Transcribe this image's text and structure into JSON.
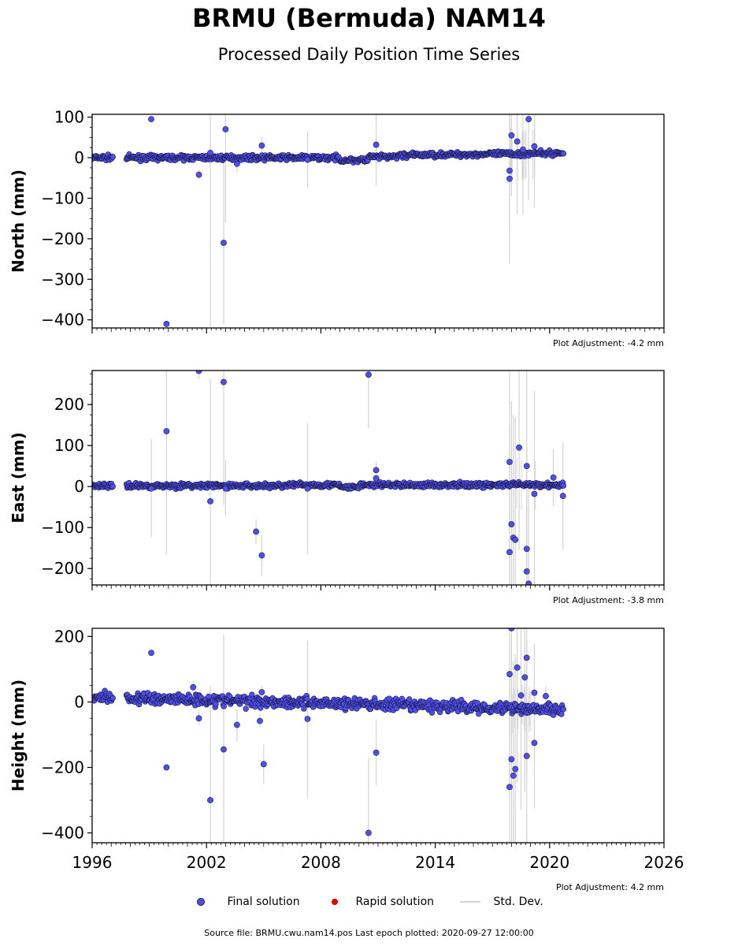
{
  "title": "BRMU (Bermuda) NAM14",
  "subtitle": "Processed Daily Position Time Series",
  "footer": "Source file: BRMU.cwu.nam14.pos  Last epoch plotted: 2020-09-27 12:00:00",
  "legend": [
    {
      "label": "Final solution",
      "color": "#4f4ff0"
    },
    {
      "label": "Rapid solution",
      "color": "#ff0000"
    },
    {
      "label": "Std. Dev.",
      "color": "#d3d3d3"
    }
  ],
  "chart_data": [
    {
      "type": "scatter",
      "ylabel": "North (mm)",
      "xlim": [
        1996,
        2026
      ],
      "ylim": [
        -420,
        107
      ],
      "yticks": [
        100,
        0,
        -100,
        -200,
        -300,
        -400
      ],
      "xticks": [
        1996,
        2002,
        2008,
        2014,
        2020,
        2026
      ],
      "xtick_labels_shown": false,
      "adjustment": "Plot Adjustment: -4.2 mm",
      "outliers": [
        {
          "x": 1999.1,
          "y": 95,
          "err": 0
        },
        {
          "x": 1999.9,
          "y": -410,
          "err": 0
        },
        {
          "x": 2001.6,
          "y": -42,
          "err": 12
        },
        {
          "x": 2002.2,
          "y": 12,
          "err": 430
        },
        {
          "x": 2002.9,
          "y": -210,
          "err": 200
        },
        {
          "x": 2003.0,
          "y": 70,
          "err": 230
        },
        {
          "x": 2003.6,
          "y": -15,
          "err": 20
        },
        {
          "x": 2004.9,
          "y": 30,
          "err": 20
        },
        {
          "x": 2007.3,
          "y": -5,
          "err": 70
        },
        {
          "x": 2010.9,
          "y": 32,
          "err": 100
        },
        {
          "x": 2017.9,
          "y": -52,
          "err": 210
        },
        {
          "x": 2017.9,
          "y": -32,
          "err": 150
        },
        {
          "x": 2018.0,
          "y": 55,
          "err": 150
        },
        {
          "x": 2018.3,
          "y": 40,
          "err": 180
        },
        {
          "x": 2018.6,
          "y": 20,
          "err": 160
        },
        {
          "x": 2018.9,
          "y": 95,
          "err": 200
        },
        {
          "x": 2019.2,
          "y": 28,
          "err": 150
        }
      ]
    },
    {
      "type": "scatter",
      "ylabel": "East (mm)",
      "xlim": [
        1996,
        2026
      ],
      "ylim": [
        -240,
        283
      ],
      "yticks": [
        200,
        100,
        0,
        -100,
        -200
      ],
      "xticks": [
        1996,
        2002,
        2008,
        2014,
        2020,
        2026
      ],
      "xtick_labels_shown": false,
      "adjustment": "Plot Adjustment: -3.8 mm",
      "outliers": [
        {
          "x": 1999.1,
          "y": -5,
          "err": 120
        },
        {
          "x": 1999.9,
          "y": 135,
          "err": 300
        },
        {
          "x": 2001.6,
          "y": 282,
          "err": 20
        },
        {
          "x": 2002.2,
          "y": -36,
          "err": 300
        },
        {
          "x": 2002.9,
          "y": 255,
          "err": 300
        },
        {
          "x": 2003.0,
          "y": -5,
          "err": 70
        },
        {
          "x": 2004.6,
          "y": -110,
          "err": 30
        },
        {
          "x": 2004.9,
          "y": -168,
          "err": 50
        },
        {
          "x": 2007.3,
          "y": -5,
          "err": 160
        },
        {
          "x": 2010.5,
          "y": 273,
          "err": 130
        },
        {
          "x": 2010.9,
          "y": 40,
          "err": 20
        },
        {
          "x": 2010.9,
          "y": 20,
          "err": 20
        },
        {
          "x": 2017.9,
          "y": -160,
          "err": 300
        },
        {
          "x": 2017.9,
          "y": 60,
          "err": 300
        },
        {
          "x": 2018.0,
          "y": -92,
          "err": 300
        },
        {
          "x": 2018.1,
          "y": -125,
          "err": 300
        },
        {
          "x": 2018.2,
          "y": -130,
          "err": 300
        },
        {
          "x": 2018.4,
          "y": 95,
          "err": 250
        },
        {
          "x": 2018.8,
          "y": 50,
          "err": 250
        },
        {
          "x": 2018.8,
          "y": -152,
          "err": 250
        },
        {
          "x": 2018.8,
          "y": -207,
          "err": 250
        },
        {
          "x": 2018.9,
          "y": -237,
          "err": 250
        },
        {
          "x": 2019.2,
          "y": -18,
          "err": 250
        },
        {
          "x": 2020.2,
          "y": 22,
          "err": 70
        },
        {
          "x": 2020.7,
          "y": -23,
          "err": 130
        }
      ]
    },
    {
      "type": "scatter",
      "ylabel": "Height (mm)",
      "xlim": [
        1996,
        2026
      ],
      "ylim": [
        -430,
        225
      ],
      "yticks": [
        200,
        0,
        -200,
        -400
      ],
      "xticks": [
        1996,
        2002,
        2008,
        2014,
        2020,
        2026
      ],
      "xtick_labels": [
        "1996",
        "2002",
        "2008",
        "2014",
        "2020",
        "2026"
      ],
      "xtick_labels_shown": true,
      "adjustment": "Plot Adjustment: 4.2 mm",
      "outliers": [
        {
          "x": 1999.1,
          "y": 150,
          "err": 0
        },
        {
          "x": 1999.9,
          "y": -200,
          "err": 0
        },
        {
          "x": 2001.3,
          "y": 45,
          "err": 20
        },
        {
          "x": 2001.6,
          "y": -50,
          "err": 20
        },
        {
          "x": 2002.2,
          "y": -300,
          "err": 350
        },
        {
          "x": 2002.9,
          "y": -145,
          "err": 350
        },
        {
          "x": 2003.6,
          "y": -70,
          "err": 50
        },
        {
          "x": 2004.8,
          "y": -58,
          "err": 20
        },
        {
          "x": 2004.9,
          "y": 30,
          "err": 20
        },
        {
          "x": 2005.0,
          "y": -190,
          "err": 60
        },
        {
          "x": 2007.3,
          "y": -52,
          "err": 240
        },
        {
          "x": 2010.5,
          "y": -400,
          "err": 230
        },
        {
          "x": 2010.9,
          "y": -155,
          "err": 100
        },
        {
          "x": 2017.9,
          "y": 85,
          "err": 350
        },
        {
          "x": 2017.9,
          "y": -260,
          "err": 350
        },
        {
          "x": 2018.0,
          "y": 225,
          "err": 350
        },
        {
          "x": 2018.0,
          "y": -175,
          "err": 350
        },
        {
          "x": 2018.1,
          "y": -225,
          "err": 350
        },
        {
          "x": 2018.2,
          "y": -205,
          "err": 350
        },
        {
          "x": 2018.3,
          "y": 105,
          "err": 350
        },
        {
          "x": 2018.5,
          "y": 20,
          "err": 350
        },
        {
          "x": 2018.7,
          "y": 75,
          "err": 350
        },
        {
          "x": 2018.8,
          "y": 135,
          "err": 350
        },
        {
          "x": 2018.8,
          "y": -165,
          "err": 350
        },
        {
          "x": 2019.2,
          "y": -125,
          "err": 200
        },
        {
          "x": 2019.2,
          "y": 28,
          "err": 150
        },
        {
          "x": 2019.8,
          "y": 18,
          "err": 30
        }
      ]
    }
  ]
}
